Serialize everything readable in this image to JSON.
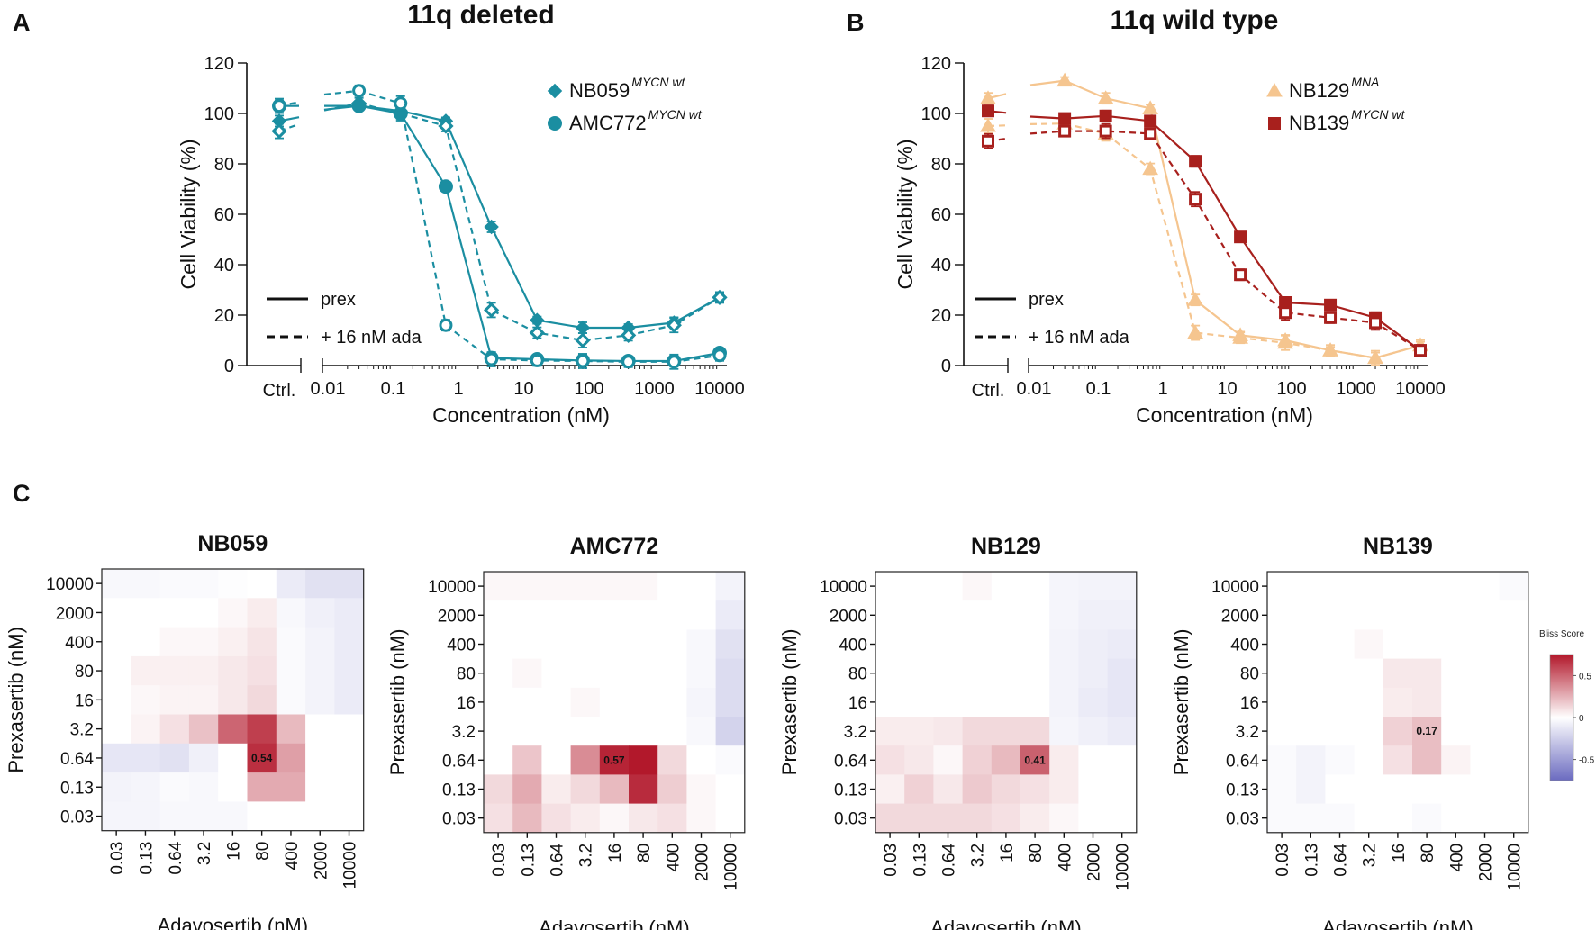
{
  "figure": {
    "panels": [
      {
        "letter": "A",
        "title": "11q deleted"
      },
      {
        "letter": "B",
        "title": "11q wild type"
      },
      {
        "letter": "C"
      }
    ],
    "style_legend": {
      "solid_label": "prex",
      "dashed_label": "+ 16 nM ada"
    }
  },
  "chart_data": [
    {
      "id": "A",
      "type": "line",
      "title": "11q deleted",
      "xlabel": "Concentration  (nM)",
      "ylabel": "Cell Viability  (%)",
      "ylim": [
        0,
        120
      ],
      "yticks": [
        0,
        20,
        40,
        60,
        80,
        100,
        120
      ],
      "x_scale": "log",
      "xlim": [
        0.005,
        14000
      ],
      "ctrl_label": "Ctrl.",
      "xticks": [
        {
          "value": 0.01,
          "label": "0.01"
        },
        {
          "value": 0.1,
          "label": "0.1"
        },
        {
          "value": 1,
          "label": "1"
        },
        {
          "value": 10,
          "label": "10"
        },
        {
          "value": 100,
          "label": "100"
        },
        {
          "value": 1000,
          "label": "1000"
        },
        {
          "value": 10000,
          "label": "10000"
        }
      ],
      "series": [
        {
          "name": "NB059",
          "superscript": "MYCN wt",
          "color": "#1b8ea1",
          "marker": "diamond",
          "treatment": "prex",
          "dashed": false,
          "ctrl": 97,
          "x": [
            0.03,
            0.13,
            0.64,
            3.2,
            16,
            80,
            400,
            2000,
            10000
          ],
          "y": [
            103,
            101,
            97,
            55,
            18,
            15,
            15,
            17,
            27
          ]
        },
        {
          "name": "NB059",
          "superscript": "MYCN wt",
          "color": "#1b8ea1",
          "marker": "diamond",
          "treatment": "+ 16 nM ada",
          "dashed": true,
          "ctrl": 93,
          "x": [
            0.03,
            0.13,
            0.64,
            3.2,
            16,
            80,
            400,
            2000,
            10000
          ],
          "y": [
            104,
            100,
            95,
            22,
            13,
            10,
            12,
            16,
            27
          ]
        },
        {
          "name": "AMC772",
          "superscript": "MYCN wt",
          "color": "#1b8ea1",
          "marker": "circle",
          "treatment": "prex",
          "dashed": false,
          "ctrl": 103,
          "x": [
            0.03,
            0.13,
            0.64,
            3.2,
            16,
            80,
            400,
            2000,
            10000
          ],
          "y": [
            103,
            100,
            71,
            3,
            2.5,
            2,
            1.8,
            1.8,
            5
          ]
        },
        {
          "name": "AMC772",
          "superscript": "MYCN wt",
          "color": "#1b8ea1",
          "marker": "circle",
          "treatment": "+ 16 nM ada",
          "dashed": true,
          "ctrl": 103,
          "x": [
            0.03,
            0.13,
            0.64,
            3.2,
            16,
            80,
            400,
            2000,
            10000
          ],
          "y": [
            109,
            104,
            16,
            2.5,
            2,
            1.8,
            1.5,
            1.5,
            4
          ]
        }
      ],
      "legend": [
        {
          "name": "NB059",
          "superscript": "MYCN wt",
          "marker": "diamond",
          "color": "#1b8ea1"
        },
        {
          "name": "AMC772",
          "superscript": "MYCN wt",
          "marker": "circle",
          "color": "#1b8ea1"
        }
      ]
    },
    {
      "id": "B",
      "type": "line",
      "title": "11q wild type",
      "xlabel": "Concentration  (nM)",
      "ylabel": "Cell Viability  (%)",
      "ylim": [
        0,
        120
      ],
      "yticks": [
        0,
        20,
        40,
        60,
        80,
        100,
        120
      ],
      "x_scale": "log",
      "xlim": [
        0.005,
        14000
      ],
      "ctrl_label": "Ctrl.",
      "xticks": [
        {
          "value": 0.01,
          "label": "0.01"
        },
        {
          "value": 0.1,
          "label": "0.1"
        },
        {
          "value": 1,
          "label": "1"
        },
        {
          "value": 10,
          "label": "10"
        },
        {
          "value": 100,
          "label": "100"
        },
        {
          "value": 1000,
          "label": "1000"
        },
        {
          "value": 10000,
          "label": "10000"
        }
      ],
      "series": [
        {
          "name": "NB129",
          "superscript": "MNA",
          "color": "#f5c58f",
          "marker": "triangle",
          "treatment": "prex",
          "dashed": false,
          "ctrl": 106,
          "x": [
            0.03,
            0.13,
            0.64,
            3.2,
            16,
            80,
            400,
            2000,
            10000
          ],
          "y": [
            113,
            106,
            102,
            26,
            12,
            10,
            6,
            3,
            8
          ]
        },
        {
          "name": "NB129",
          "superscript": "MNA",
          "color": "#f5c58f",
          "marker": "triangle",
          "treatment": "+ 16 nM ada",
          "dashed": true,
          "ctrl": 95,
          "x": [
            0.03,
            0.13,
            0.64,
            3.2,
            16,
            80,
            400,
            2000,
            10000
          ],
          "y": [
            96,
            92,
            78,
            13,
            11,
            9,
            6,
            3,
            8
          ]
        },
        {
          "name": "NB139",
          "superscript": "MYCN wt",
          "color": "#a8201d",
          "marker": "square",
          "treatment": "prex",
          "dashed": false,
          "ctrl": 101,
          "x": [
            0.03,
            0.13,
            0.64,
            3.2,
            16,
            80,
            400,
            2000,
            10000
          ],
          "y": [
            98,
            99,
            97,
            81,
            51,
            25,
            24,
            19,
            6
          ]
        },
        {
          "name": "NB139",
          "superscript": "MYCN wt",
          "color": "#a8201d",
          "marker": "square",
          "treatment": "+ 16 nM ada",
          "dashed": true,
          "ctrl": 89,
          "x": [
            0.03,
            0.13,
            0.64,
            3.2,
            16,
            80,
            400,
            2000,
            10000
          ],
          "y": [
            93,
            93,
            92,
            66,
            36,
            21,
            19,
            17,
            6
          ]
        }
      ],
      "legend": [
        {
          "name": "NB129",
          "superscript": "MNA",
          "marker": "triangle",
          "color": "#f5c58f"
        },
        {
          "name": "NB139",
          "superscript": "MYCN wt",
          "marker": "square",
          "color": "#a8201d"
        }
      ]
    },
    {
      "id": "C",
      "type": "heatmap",
      "xlabel": "Adavosertib (nM)",
      "ylabel": "Prexasertib (nM)",
      "x_categories": [
        "0.03",
        "0.13",
        "0.64",
        "3.2",
        "16",
        "80",
        "400",
        "2000",
        "10000"
      ],
      "y_categories": [
        "10000",
        "2000",
        "400",
        "80",
        "16",
        "3.2",
        "0.64",
        "0.13",
        "0.03"
      ],
      "colorbar": {
        "title": "Bliss Score",
        "ticks": [
          "0.5",
          "0",
          "-0.5"
        ],
        "range": [
          -0.75,
          0.75
        ]
      },
      "maps": [
        {
          "name": "NB059",
          "annotation": {
            "row": 6,
            "col": 5,
            "text": "0.54"
          },
          "values": [
            [
              -0.03,
              -0.03,
              -0.02,
              -0.02,
              -0.01,
              0.0,
              -0.08,
              -0.12,
              -0.12
            ],
            [
              0.0,
              0.0,
              0.0,
              0.0,
              0.02,
              0.05,
              -0.03,
              -0.06,
              -0.08
            ],
            [
              0.0,
              0.0,
              0.02,
              0.02,
              0.04,
              0.07,
              -0.02,
              -0.05,
              -0.08
            ],
            [
              0.0,
              0.04,
              0.04,
              0.04,
              0.06,
              0.08,
              -0.02,
              -0.05,
              -0.08
            ],
            [
              0.0,
              0.02,
              0.03,
              0.03,
              0.06,
              0.1,
              -0.02,
              -0.05,
              -0.08
            ],
            [
              0.0,
              0.03,
              0.08,
              0.16,
              0.4,
              0.5,
              0.18,
              0.0,
              0.0
            ],
            [
              -0.1,
              -0.1,
              -0.12,
              -0.06,
              0.0,
              0.54,
              0.25,
              0.0,
              0.0
            ],
            [
              -0.05,
              -0.04,
              -0.02,
              -0.03,
              0.0,
              0.22,
              0.22,
              0.0,
              0.0
            ],
            [
              -0.04,
              -0.04,
              -0.03,
              -0.03,
              -0.03,
              0.0,
              0.0,
              0.0,
              0.0
            ]
          ]
        },
        {
          "name": "AMC772",
          "annotation": {
            "row": 6,
            "col": 4,
            "text": "0.57"
          },
          "values": [
            [
              0.02,
              0.02,
              0.02,
              0.02,
              0.02,
              0.02,
              0.0,
              0.0,
              -0.05
            ],
            [
              0.0,
              0.0,
              0.0,
              0.0,
              0.0,
              0.0,
              0.0,
              0.0,
              -0.08
            ],
            [
              0.0,
              0.0,
              0.0,
              0.0,
              0.0,
              0.0,
              0.0,
              -0.03,
              -0.12
            ],
            [
              0.0,
              0.02,
              0.0,
              0.0,
              0.0,
              0.0,
              0.0,
              -0.03,
              -0.14
            ],
            [
              0.0,
              0.0,
              0.0,
              0.02,
              0.0,
              0.0,
              0.0,
              -0.04,
              -0.14
            ],
            [
              0.0,
              0.0,
              0.0,
              0.0,
              0.0,
              0.0,
              0.0,
              -0.03,
              -0.18
            ],
            [
              0.0,
              0.15,
              0.0,
              0.3,
              0.57,
              0.6,
              0.1,
              0.0,
              -0.02
            ],
            [
              0.1,
              0.22,
              0.05,
              0.1,
              0.18,
              0.55,
              0.13,
              0.02,
              0.0
            ],
            [
              0.08,
              0.18,
              0.08,
              0.05,
              0.02,
              0.06,
              0.08,
              0.02,
              0.0
            ]
          ]
        },
        {
          "name": "NB129",
          "annotation": {
            "row": 6,
            "col": 5,
            "text": "0.41"
          },
          "values": [
            [
              0.0,
              0.0,
              0.0,
              0.02,
              0.0,
              0.0,
              -0.04,
              -0.05,
              -0.05
            ],
            [
              0.0,
              0.0,
              0.0,
              0.0,
              0.0,
              0.0,
              -0.04,
              -0.06,
              -0.06
            ],
            [
              0.0,
              0.0,
              0.0,
              0.0,
              0.0,
              0.0,
              -0.05,
              -0.07,
              -0.08
            ],
            [
              0.0,
              0.0,
              0.0,
              0.0,
              0.0,
              0.0,
              -0.05,
              -0.07,
              -0.1
            ],
            [
              0.0,
              0.0,
              0.0,
              0.0,
              0.0,
              0.0,
              -0.05,
              -0.08,
              -0.1
            ],
            [
              0.05,
              0.05,
              0.06,
              0.1,
              0.1,
              0.1,
              -0.04,
              -0.06,
              -0.08
            ],
            [
              0.08,
              0.06,
              0.02,
              0.12,
              0.18,
              0.41,
              0.05,
              0.0,
              0.0
            ],
            [
              0.04,
              0.12,
              0.06,
              0.14,
              0.1,
              0.08,
              0.05,
              0.0,
              0.0
            ],
            [
              0.1,
              0.1,
              0.1,
              0.1,
              0.08,
              0.05,
              0.02,
              0.0,
              0.0
            ]
          ]
        },
        {
          "name": "NB139",
          "annotation": {
            "row": 5,
            "col": 5,
            "text": "0.17"
          },
          "values": [
            [
              0.0,
              0.0,
              0.0,
              0.0,
              0.0,
              0.0,
              0.0,
              0.0,
              -0.02
            ],
            [
              0.0,
              0.0,
              0.0,
              0.0,
              0.0,
              0.0,
              0.0,
              0.0,
              0.0
            ],
            [
              0.0,
              0.0,
              0.0,
              0.02,
              0.0,
              0.0,
              0.0,
              0.0,
              0.0
            ],
            [
              0.0,
              0.0,
              0.0,
              0.0,
              0.06,
              0.06,
              0.0,
              0.0,
              0.0
            ],
            [
              0.0,
              0.0,
              0.0,
              0.0,
              0.05,
              0.06,
              0.0,
              0.0,
              0.0
            ],
            [
              0.0,
              0.0,
              0.0,
              0.0,
              0.12,
              0.17,
              0.0,
              0.0,
              0.0
            ],
            [
              -0.02,
              -0.05,
              -0.02,
              0.0,
              0.08,
              0.17,
              0.03,
              0.0,
              0.0
            ],
            [
              -0.02,
              -0.05,
              0.0,
              0.0,
              0.0,
              0.0,
              0.0,
              0.0,
              0.0
            ],
            [
              -0.02,
              -0.02,
              -0.02,
              0.0,
              0.0,
              -0.02,
              0.0,
              0.0,
              0.0
            ]
          ]
        }
      ]
    }
  ]
}
